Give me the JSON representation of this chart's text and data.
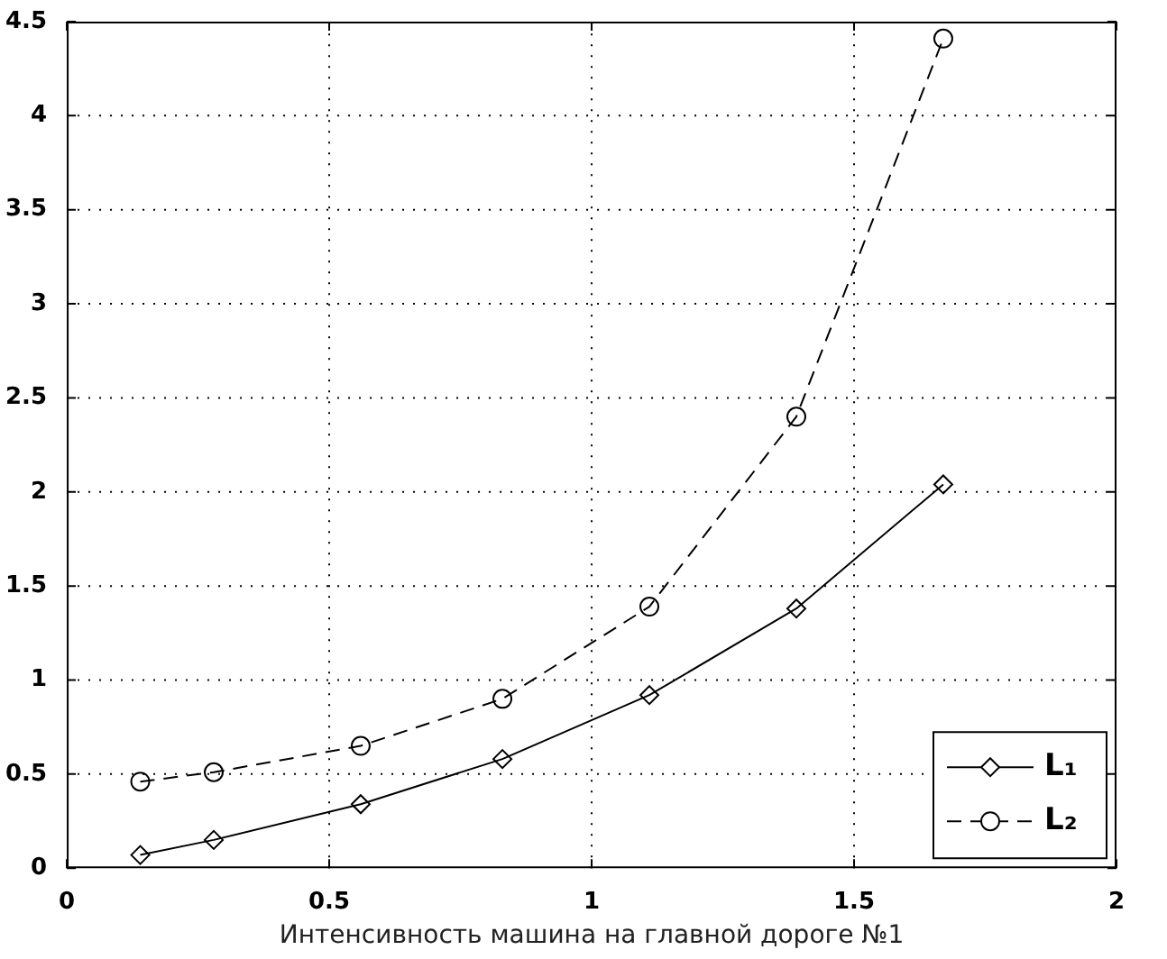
{
  "chart_data": {
    "type": "line",
    "xlabel": "Интенсивность машина на главной дороге №1",
    "xlim": [
      0,
      2
    ],
    "xticks": [
      0,
      0.5,
      1,
      1.5,
      2
    ],
    "ylim": [
      0,
      4.5
    ],
    "yticks": [
      0,
      0.5,
      1,
      1.5,
      2,
      2.5,
      3,
      3.5,
      4,
      4.5
    ],
    "grid": true,
    "legend": "bottom right",
    "x": [
      0.14,
      0.28,
      0.56,
      0.83,
      1.11,
      1.39,
      1.67
    ],
    "series": [
      {
        "name": "L₁",
        "color": "#000000",
        "marker": "diamond",
        "line_style": "solid",
        "values": [
          0.07,
          0.15,
          0.34,
          0.58,
          0.92,
          1.38,
          2.04
        ]
      },
      {
        "name": "L₂",
        "color": "#000000",
        "marker": "circle",
        "line_style": "dashed",
        "values": [
          0.46,
          0.51,
          0.65,
          0.9,
          1.39,
          2.4,
          4.41
        ]
      }
    ]
  }
}
